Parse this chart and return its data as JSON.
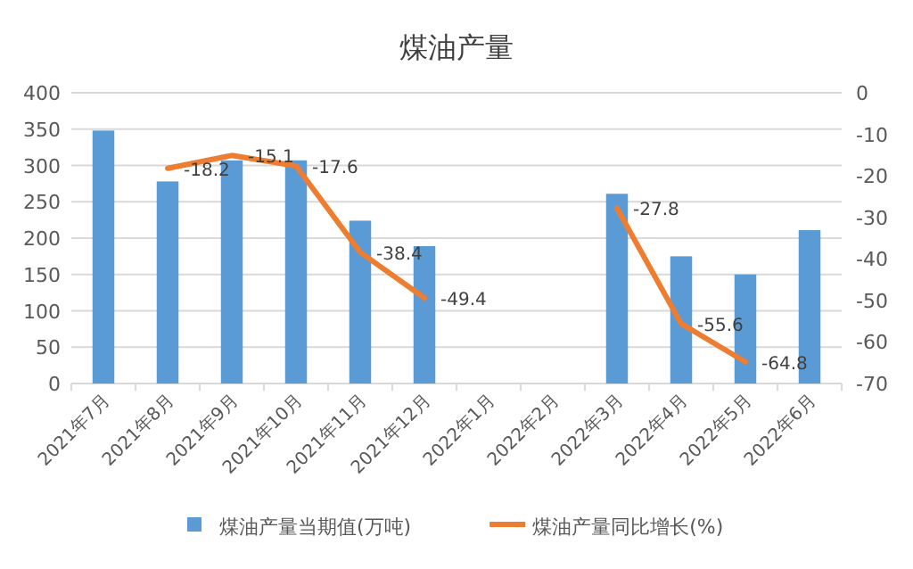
{
  "chart_data": {
    "type": "bar",
    "title": "煤油产量",
    "categories": [
      "2021年7月",
      "2021年8月",
      "2021年9月",
      "2021年10月",
      "2021年11月",
      "2021年12月",
      "2022年1月",
      "2022年2月",
      "2022年3月",
      "2022年4月",
      "2022年5月",
      "2022年6月"
    ],
    "series": [
      {
        "name": "煤油产量当期值(万吨)",
        "color": "#5b9bd5",
        "values": [
          348,
          278,
          307,
          307,
          224,
          189,
          null,
          null,
          261,
          175,
          150,
          211
        ]
      },
      {
        "name": "煤油产量同比增长(%)",
        "type": "line",
        "axis": "y2",
        "color": "#ed7d31",
        "data_labels": true,
        "values": [
          null,
          -18.2,
          -15.1,
          -17.6,
          -38.4,
          -49.4,
          null,
          null,
          -27.8,
          -55.6,
          -64.8,
          null
        ]
      }
    ],
    "ylim": [
      0,
      400
    ],
    "yticks": [
      0,
      50,
      100,
      150,
      200,
      250,
      300,
      350,
      400
    ],
    "y2lim": [
      -70,
      0
    ],
    "y2ticks": [
      -70,
      -60,
      -50,
      -40,
      -30,
      -20,
      -10,
      0
    ],
    "grid": "y",
    "legend": "bottom"
  }
}
